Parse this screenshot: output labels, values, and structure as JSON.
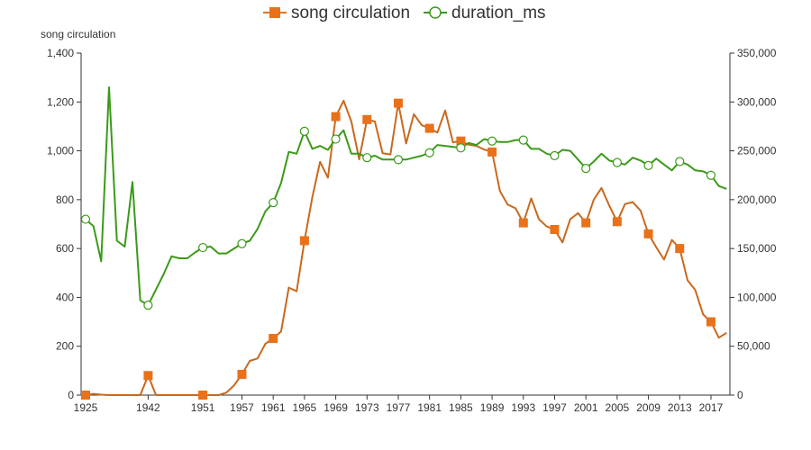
{
  "chart_data": {
    "type": "line",
    "title": "",
    "legend": {
      "placement": "top-center"
    },
    "grid": false,
    "y_left": {
      "name": "song circulation",
      "min": 0,
      "max": 1400,
      "ticks": [
        "0",
        "200",
        "400",
        "600",
        "800",
        "1,000",
        "1,200",
        "1,400"
      ]
    },
    "y_right": {
      "name": "",
      "min": 0,
      "max": 350000,
      "ticks": [
        "0",
        "50,000",
        "100,000",
        "150,000",
        "200,000",
        "250,000",
        "300,000",
        "350,000"
      ]
    },
    "x_tick_labels": [
      "1925",
      "1942",
      "1951",
      "1957",
      "1961",
      "1965",
      "1969",
      "1973",
      "1977",
      "1981",
      "1985",
      "1989",
      "1993",
      "1997",
      "2001",
      "2005",
      "2009",
      "2013",
      "2017"
    ],
    "series": [
      {
        "name": "song circulation",
        "axis": "left",
        "color": "#e8711a",
        "line_color": "#c8691e",
        "marker": "square",
        "values": [
          {
            "x": 1925,
            "y": 0
          },
          {
            "x": 1926,
            "y": 5
          },
          {
            "x": 1927,
            "y": 2
          },
          {
            "x": 1928,
            "y": 0
          },
          {
            "x": 1929,
            "y": 0
          },
          {
            "x": 1930,
            "y": 0
          },
          {
            "x": 1931,
            "y": 0
          },
          {
            "x": 1933,
            "y": 0
          },
          {
            "x": 1942,
            "y": 80
          },
          {
            "x": 1944,
            "y": 0
          },
          {
            "x": 1946,
            "y": 0
          },
          {
            "x": 1947,
            "y": 0
          },
          {
            "x": 1948,
            "y": 0
          },
          {
            "x": 1949,
            "y": 0
          },
          {
            "x": 1950,
            "y": 0
          },
          {
            "x": 1951,
            "y": 0
          },
          {
            "x": 1953,
            "y": 0
          },
          {
            "x": 1954,
            "y": 0
          },
          {
            "x": 1955,
            "y": 10
          },
          {
            "x": 1956,
            "y": 40
          },
          {
            "x": 1957,
            "y": 85
          },
          {
            "x": 1958,
            "y": 140
          },
          {
            "x": 1959,
            "y": 150
          },
          {
            "x": 1960,
            "y": 210
          },
          {
            "x": 1961,
            "y": 232
          },
          {
            "x": 1962,
            "y": 260
          },
          {
            "x": 1963,
            "y": 440
          },
          {
            "x": 1964,
            "y": 425
          },
          {
            "x": 1965,
            "y": 632
          },
          {
            "x": 1966,
            "y": 810
          },
          {
            "x": 1967,
            "y": 955
          },
          {
            "x": 1968,
            "y": 890
          },
          {
            "x": 1969,
            "y": 1140
          },
          {
            "x": 1970,
            "y": 1205
          },
          {
            "x": 1971,
            "y": 1120
          },
          {
            "x": 1972,
            "y": 965
          },
          {
            "x": 1973,
            "y": 1128
          },
          {
            "x": 1974,
            "y": 1120
          },
          {
            "x": 1975,
            "y": 990
          },
          {
            "x": 1976,
            "y": 985
          },
          {
            "x": 1977,
            "y": 1195
          },
          {
            "x": 1978,
            "y": 1030
          },
          {
            "x": 1979,
            "y": 1150
          },
          {
            "x": 1980,
            "y": 1105
          },
          {
            "x": 1981,
            "y": 1092
          },
          {
            "x": 1982,
            "y": 1075
          },
          {
            "x": 1983,
            "y": 1165
          },
          {
            "x": 1984,
            "y": 1035
          },
          {
            "x": 1985,
            "y": 1040
          },
          {
            "x": 1986,
            "y": 1025
          },
          {
            "x": 1987,
            "y": 1020
          },
          {
            "x": 1988,
            "y": 1005
          },
          {
            "x": 1989,
            "y": 995
          },
          {
            "x": 1990,
            "y": 835
          },
          {
            "x": 1991,
            "y": 780
          },
          {
            "x": 1992,
            "y": 765
          },
          {
            "x": 1993,
            "y": 705
          },
          {
            "x": 1994,
            "y": 805
          },
          {
            "x": 1995,
            "y": 720
          },
          {
            "x": 1996,
            "y": 690
          },
          {
            "x": 1997,
            "y": 678
          },
          {
            "x": 1998,
            "y": 625
          },
          {
            "x": 1999,
            "y": 720
          },
          {
            "x": 2000,
            "y": 745
          },
          {
            "x": 2001,
            "y": 705
          },
          {
            "x": 2002,
            "y": 800
          },
          {
            "x": 2003,
            "y": 848
          },
          {
            "x": 2004,
            "y": 775
          },
          {
            "x": 2005,
            "y": 710
          },
          {
            "x": 2006,
            "y": 782
          },
          {
            "x": 2007,
            "y": 790
          },
          {
            "x": 2008,
            "y": 755
          },
          {
            "x": 2009,
            "y": 660
          },
          {
            "x": 2010,
            "y": 605
          },
          {
            "x": 2011,
            "y": 555
          },
          {
            "x": 2012,
            "y": 635
          },
          {
            "x": 2013,
            "y": 600
          },
          {
            "x": 2014,
            "y": 470
          },
          {
            "x": 2015,
            "y": 430
          },
          {
            "x": 2016,
            "y": 330
          },
          {
            "x": 2017,
            "y": 300
          },
          {
            "x": 2018,
            "y": 235
          },
          {
            "x": 2019,
            "y": 255
          }
        ]
      },
      {
        "name": "duration_ms",
        "axis": "right",
        "color": "#3a9a18",
        "line_color": "#3a9a18",
        "marker": "circle",
        "values": [
          {
            "x": 1925,
            "y": 180000
          },
          {
            "x": 1926,
            "y": 173000
          },
          {
            "x": 1927,
            "y": 137000
          },
          {
            "x": 1928,
            "y": 315000
          },
          {
            "x": 1929,
            "y": 158000
          },
          {
            "x": 1930,
            "y": 152000
          },
          {
            "x": 1931,
            "y": 218000
          },
          {
            "x": 1933,
            "y": 97000
          },
          {
            "x": 1942,
            "y": 92000
          },
          {
            "x": 1944,
            "y": 108000
          },
          {
            "x": 1946,
            "y": 124000
          },
          {
            "x": 1947,
            "y": 142000
          },
          {
            "x": 1948,
            "y": 140000
          },
          {
            "x": 1949,
            "y": 140000
          },
          {
            "x": 1950,
            "y": 146000
          },
          {
            "x": 1951,
            "y": 151000
          },
          {
            "x": 1953,
            "y": 152000
          },
          {
            "x": 1954,
            "y": 145000
          },
          {
            "x": 1955,
            "y": 145000
          },
          {
            "x": 1956,
            "y": 150000
          },
          {
            "x": 1957,
            "y": 155000
          },
          {
            "x": 1958,
            "y": 158000
          },
          {
            "x": 1959,
            "y": 170000
          },
          {
            "x": 1960,
            "y": 188000
          },
          {
            "x": 1961,
            "y": 197000
          },
          {
            "x": 1962,
            "y": 217000
          },
          {
            "x": 1963,
            "y": 249000
          },
          {
            "x": 1964,
            "y": 247000
          },
          {
            "x": 1965,
            "y": 270000
          },
          {
            "x": 1966,
            "y": 252000
          },
          {
            "x": 1967,
            "y": 255000
          },
          {
            "x": 1968,
            "y": 251000
          },
          {
            "x": 1969,
            "y": 262000
          },
          {
            "x": 1970,
            "y": 271000
          },
          {
            "x": 1971,
            "y": 247000
          },
          {
            "x": 1972,
            "y": 247000
          },
          {
            "x": 1973,
            "y": 243000
          },
          {
            "x": 1974,
            "y": 245000
          },
          {
            "x": 1975,
            "y": 241000
          },
          {
            "x": 1976,
            "y": 241000
          },
          {
            "x": 1977,
            "y": 241000
          },
          {
            "x": 1978,
            "y": 241000
          },
          {
            "x": 1979,
            "y": 243000
          },
          {
            "x": 1980,
            "y": 245000
          },
          {
            "x": 1981,
            "y": 248000
          },
          {
            "x": 1982,
            "y": 256000
          },
          {
            "x": 1983,
            "y": 255000
          },
          {
            "x": 1984,
            "y": 254000
          },
          {
            "x": 1985,
            "y": 253000
          },
          {
            "x": 1986,
            "y": 258000
          },
          {
            "x": 1987,
            "y": 256000
          },
          {
            "x": 1988,
            "y": 262000
          },
          {
            "x": 1989,
            "y": 260000
          },
          {
            "x": 1990,
            "y": 259000
          },
          {
            "x": 1991,
            "y": 259000
          },
          {
            "x": 1992,
            "y": 261000
          },
          {
            "x": 1993,
            "y": 261000
          },
          {
            "x": 1994,
            "y": 252000
          },
          {
            "x": 1995,
            "y": 252000
          },
          {
            "x": 1996,
            "y": 247000
          },
          {
            "x": 1997,
            "y": 245000
          },
          {
            "x": 1998,
            "y": 251000
          },
          {
            "x": 1999,
            "y": 250000
          },
          {
            "x": 2000,
            "y": 241000
          },
          {
            "x": 2001,
            "y": 232000
          },
          {
            "x": 2002,
            "y": 239000
          },
          {
            "x": 2003,
            "y": 247000
          },
          {
            "x": 2004,
            "y": 240000
          },
          {
            "x": 2005,
            "y": 238000
          },
          {
            "x": 2006,
            "y": 236000
          },
          {
            "x": 2007,
            "y": 243000
          },
          {
            "x": 2008,
            "y": 240000
          },
          {
            "x": 2009,
            "y": 235000
          },
          {
            "x": 2010,
            "y": 242000
          },
          {
            "x": 2011,
            "y": 236000
          },
          {
            "x": 2012,
            "y": 230000
          },
          {
            "x": 2013,
            "y": 239000
          },
          {
            "x": 2014,
            "y": 236000
          },
          {
            "x": 2015,
            "y": 230000
          },
          {
            "x": 2016,
            "y": 229000
          },
          {
            "x": 2017,
            "y": 225000
          },
          {
            "x": 2018,
            "y": 214000
          },
          {
            "x": 2019,
            "y": 211000
          }
        ]
      }
    ]
  }
}
